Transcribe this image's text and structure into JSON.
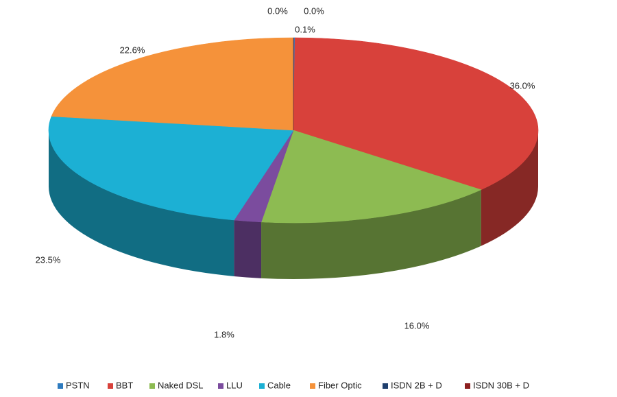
{
  "chart_data": {
    "type": "pie3d",
    "categories": [
      "PSTN",
      "BBT",
      "Naked DSL",
      "LLU",
      "Cable",
      "Fiber Optic",
      "ISDN 2B + D",
      "ISDN 30B + D"
    ],
    "values": [
      0.1,
      36,
      16,
      1.8,
      23.5,
      22.6,
      0,
      0
    ],
    "value_labels": [
      "0.1%",
      "36.0%",
      "16.0%",
      "1.8%",
      "23.5%",
      "22.6%",
      "0.0%",
      "0.0%"
    ],
    "colors": [
      "#2e7bbf",
      "#d8413b",
      "#8dbb52",
      "#7b4c9e",
      "#1cb0d4",
      "#f5923a",
      "#1f3f6e",
      "#8c1f1f"
    ],
    "legend": "bottom"
  }
}
